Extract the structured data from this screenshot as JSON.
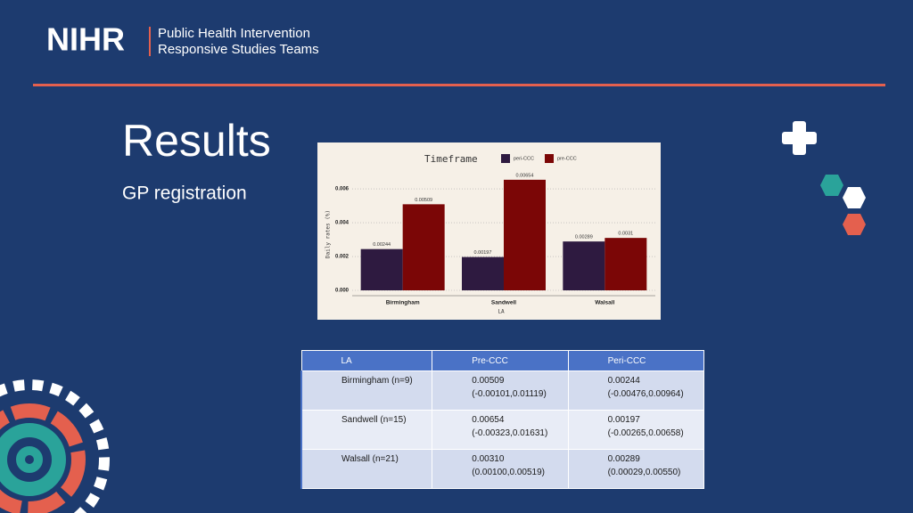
{
  "header": {
    "logo": "NIHR",
    "org_line1": "Public Health Intervention",
    "org_line2": "Responsive Studies Teams"
  },
  "title": "Results",
  "subtitle": "GP registration",
  "chart_data": {
    "type": "bar",
    "legend_title": "Timeframe",
    "xlabel": "LA",
    "ylabel": "Daily rates (%)",
    "categories": [
      "Birmingham",
      "Sandwell",
      "Walsall"
    ],
    "series": [
      {
        "name": "peri-CCC",
        "color": "#2e1a40",
        "values": [
          0.00244,
          0.00197,
          0.00289
        ]
      },
      {
        "name": "pre-CCC",
        "color": "#7b0606",
        "values": [
          0.00509,
          0.00654,
          0.0031
        ]
      }
    ],
    "ylim": [
      0,
      0.0069
    ],
    "yticks": [
      {
        "value": 0,
        "label": "0.000"
      },
      {
        "value": 0.002,
        "label": "0.002"
      },
      {
        "value": 0.004,
        "label": "0.004"
      },
      {
        "value": 0.006,
        "label": "0.006"
      }
    ],
    "grid": true
  },
  "table": {
    "header": [
      "LA",
      "Pre-CCC",
      "Peri-CCC"
    ],
    "rows": [
      {
        "la": "Birmingham (n=9)",
        "pre": {
          "value": "0.00509",
          "ci": "(-0.00101,0.01119)"
        },
        "peri": {
          "value": "0.00244",
          "ci": "(-0.00476,0.00964)"
        }
      },
      {
        "la": "Sandwell (n=15)",
        "pre": {
          "value": "0.00654",
          "ci": "(-0.00323,0.01631)"
        },
        "peri": {
          "value": "0.00197",
          "ci": "(-0.00265,0.00658)"
        }
      },
      {
        "la": "Walsall (n=21)",
        "pre": {
          "value": "0.00310",
          "ci": "(0.00100,0.00519)"
        },
        "peri": {
          "value": "0.00289",
          "ci": "(0.00029,0.00550)"
        }
      }
    ]
  }
}
